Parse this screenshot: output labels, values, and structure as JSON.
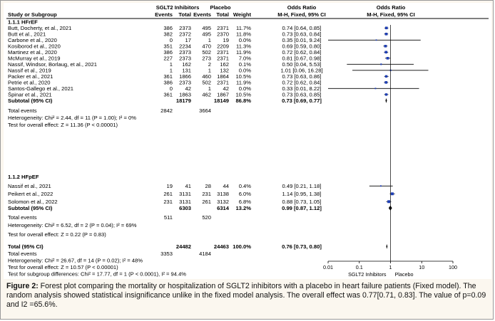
{
  "caption": {
    "label": "Figure 2:",
    "text": " Forest plot comparing the mortality or hospitalization of SGLT2 inhibitors with a placebo in heart failure patients (Fixed model). The random analysis showed statistical insignificance unlike in the fixed model analysis. The overall effect was 0.77[0.71, 0.83]. The value of p=0.09 and I2 =65.6%."
  },
  "chart_data": {
    "type": "forest",
    "headers": {
      "study": "Study or Subgroup",
      "treatment_group": "SGLT2 Inhibitors",
      "control_group": "Placebo",
      "events": "Events",
      "total": "Total",
      "weight": "Weight",
      "or_group": "Odds Ratio",
      "or_method": "M-H, Fixed, 95% CI",
      "plot_title": "Odds Ratio",
      "plot_method": "M-H, Fixed, 95% CI"
    },
    "subgroups": [
      {
        "label": "1.1.1 HFrEF",
        "studies": [
          {
            "name": "Butt, Docherty, et al., 2021",
            "e1": "386",
            "n1": "2373",
            "e2": "495",
            "n2": "2371",
            "weight": "11.7%",
            "ci_text": "0.74 [0.64, 0.85]",
            "or": 0.74,
            "lo": 0.64,
            "hi": 0.85
          },
          {
            "name": "Butt et al., 2021",
            "e1": "382",
            "n1": "2372",
            "e2": "495",
            "n2": "2370",
            "weight": "11.8%",
            "ci_text": "0.73 [0.63, 0.84]",
            "or": 0.73,
            "lo": 0.63,
            "hi": 0.84
          },
          {
            "name": "Carbone et al., 2020",
            "e1": "0",
            "n1": "17",
            "e2": "1",
            "n2": "19",
            "weight": "0.0%",
            "ci_text": "0.35 [0.01, 9.24]",
            "or": 0.35,
            "lo": 0.01,
            "hi": 9.24
          },
          {
            "name": "Kosiborod et al., 2020",
            "e1": "351",
            "n1": "2234",
            "e2": "470",
            "n2": "2209",
            "weight": "11.3%",
            "ci_text": "0.69 [0.59, 0.80]",
            "or": 0.69,
            "lo": 0.59,
            "hi": 0.8
          },
          {
            "name": "Martinez et al., 2020",
            "e1": "386",
            "n1": "2373",
            "e2": "502",
            "n2": "2371",
            "weight": "11.9%",
            "ci_text": "0.72 [0.62, 0.84]",
            "or": 0.72,
            "lo": 0.62,
            "hi": 0.84
          },
          {
            "name": "McMurray et al., 2019",
            "e1": "227",
            "n1": "2373",
            "e2": "273",
            "n2": "2371",
            "weight": "7.0%",
            "ci_text": "0.81 [0.67, 0.98]",
            "or": 0.81,
            "lo": 0.67,
            "hi": 0.98
          },
          {
            "name": "Nassif, Windsor, Borlaug, et al., 2021",
            "e1": "1",
            "n1": "162",
            "e2": "2",
            "n2": "162",
            "weight": "0.1%",
            "ci_text": "0.50 [0.04, 5.53]",
            "or": 0.5,
            "lo": 0.04,
            "hi": 5.53
          },
          {
            "name": "Nassif et al., 2019",
            "e1": "1",
            "n1": "131",
            "e2": "1",
            "n2": "132",
            "weight": "0.0%",
            "ci_text": "1.01 [0.06, 16.28]",
            "or": 1.01,
            "lo": 0.06,
            "hi": 16.28
          },
          {
            "name": "Packer et al., 2021",
            "e1": "361",
            "n1": "1866",
            "e2": "460",
            "n2": "1864",
            "weight": "10.5%",
            "ci_text": "0.73 [0.63, 0.86]",
            "or": 0.73,
            "lo": 0.63,
            "hi": 0.86
          },
          {
            "name": "Petrie et al., 2020",
            "e1": "386",
            "n1": "2373",
            "e2": "502",
            "n2": "2371",
            "weight": "11.9%",
            "ci_text": "0.72 [0.62, 0.84]",
            "or": 0.72,
            "lo": 0.62,
            "hi": 0.84
          },
          {
            "name": "Santos-Gallego et al., 2021",
            "e1": "0",
            "n1": "42",
            "e2": "1",
            "n2": "42",
            "weight": "0.0%",
            "ci_text": "0.33 [0.01, 8.22]",
            "or": 0.33,
            "lo": 0.01,
            "hi": 8.22
          },
          {
            "name": "Špinar et al., 2021",
            "e1": "361",
            "n1": "1863",
            "e2": "462",
            "n2": "1867",
            "weight": "10.5%",
            "ci_text": "0.73 [0.63, 0.85]",
            "or": 0.73,
            "lo": 0.63,
            "hi": 0.85
          }
        ],
        "subtotal": {
          "label": "Subtotal (95% CI)",
          "n1": "18179",
          "n2": "18149",
          "weight": "86.8%",
          "ci_text": "0.73 [0.69, 0.77]",
          "or": 0.73,
          "lo": 0.69,
          "hi": 0.77
        },
        "total_events": {
          "label": "Total events",
          "e1": "2842",
          "e2": "3664"
        },
        "heterogeneity": "Heterogeneity: Chi² = 2.44, df = 11 (P = 1.00); I² = 0%",
        "overall_effect": "Test for overall effect: Z = 11.36 (P < 0.00001)"
      },
      {
        "label": "1.1.2 HFpEF",
        "studies": [
          {
            "name": "Nassif et al., 2021",
            "e1": "19",
            "n1": "41",
            "e2": "28",
            "n2": "44",
            "weight": "0.4%",
            "ci_text": "0.49 [0.21, 1.18]",
            "or": 0.49,
            "lo": 0.21,
            "hi": 1.18
          },
          {
            "name": "Peikert et al., 2022",
            "e1": "261",
            "n1": "3131",
            "e2": "231",
            "n2": "3138",
            "weight": "6.0%",
            "ci_text": "1.14 [0.95, 1.38]",
            "or": 1.14,
            "lo": 0.95,
            "hi": 1.38
          },
          {
            "name": "Solomon et al., 2022",
            "e1": "231",
            "n1": "3131",
            "e2": "261",
            "n2": "3132",
            "weight": "6.8%",
            "ci_text": "0.88 [0.73, 1.05]",
            "or": 0.88,
            "lo": 0.73,
            "hi": 1.05
          }
        ],
        "subtotal": {
          "label": "Subtotal (95% CI)",
          "n1": "6303",
          "n2": "6314",
          "weight": "13.2%",
          "ci_text": "0.99 [0.87, 1.12]",
          "or": 0.99,
          "lo": 0.87,
          "hi": 1.12
        },
        "total_events": {
          "label": "Total events",
          "e1": "511",
          "e2": "520"
        },
        "heterogeneity": "Heterogeneity: Chi² = 6.52, df = 2 (P = 0.04); I² = 69%",
        "overall_effect": "Test for overall effect: Z = 0.22 (P = 0.83)"
      }
    ],
    "total": {
      "label": "Total (95% CI)",
      "n1": "24482",
      "n2": "24463",
      "weight": "100.0%",
      "ci_text": "0.76 [0.73, 0.80]",
      "or": 0.76,
      "lo": 0.73,
      "hi": 0.8
    },
    "total_events": {
      "label": "Total events",
      "e1": "3353",
      "e2": "4184"
    },
    "total_heterogeneity": "Heterogeneity: Chi² = 26.67, df = 14 (P = 0.02); I² = 48%",
    "total_overall_effect": "Test for overall effect: Z = 10.57 (P < 0.00001)",
    "subgroup_differences": "Test for subgroup differences: Chi² = 17.77, df = 1 (P < 0.0001), I² = 94.4%",
    "axis": {
      "scale": "log",
      "ticks": [
        0.01,
        0.1,
        1,
        10,
        100
      ],
      "tick_labels": [
        "0.01",
        "0.1",
        "1",
        "10",
        "100"
      ],
      "left_label": "SGLT2 Inhibitors",
      "right_label": "Placebo"
    }
  }
}
